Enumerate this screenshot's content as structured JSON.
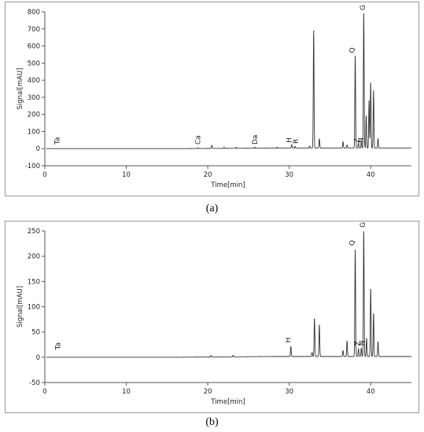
{
  "chart_data": [
    {
      "type": "line",
      "caption": "(a)",
      "xlabel": "Time[min]",
      "ylabel": "Signal[mAU]",
      "xlim": [
        0,
        45
      ],
      "ylim": [
        -100,
        800
      ],
      "xticks": [
        0,
        10,
        20,
        30,
        40
      ],
      "yticks": [
        -100,
        0,
        100,
        200,
        300,
        400,
        500,
        600,
        700,
        800
      ],
      "grid": false,
      "series_color": "#333333",
      "peaks": [
        {
          "t": 18.8,
          "h": 4
        },
        {
          "t": 20.5,
          "h": 18
        },
        {
          "t": 22.0,
          "h": 6
        },
        {
          "t": 23.5,
          "h": 6
        },
        {
          "t": 25.8,
          "h": 5
        },
        {
          "t": 28.5,
          "h": 5
        },
        {
          "t": 30.3,
          "h": 20
        },
        {
          "t": 30.7,
          "h": 10
        },
        {
          "t": 32.5,
          "h": 12
        },
        {
          "t": 33.0,
          "h": 690
        },
        {
          "t": 33.7,
          "h": 55
        },
        {
          "t": 36.6,
          "h": 38
        },
        {
          "t": 37.1,
          "h": 18
        },
        {
          "t": 38.1,
          "h": 540
        },
        {
          "t": 38.5,
          "h": 30
        },
        {
          "t": 38.85,
          "h": 35
        },
        {
          "t": 39.15,
          "h": 790
        },
        {
          "t": 39.45,
          "h": 190
        },
        {
          "t": 39.8,
          "h": 280
        },
        {
          "t": 40.0,
          "h": 385
        },
        {
          "t": 40.35,
          "h": 340
        },
        {
          "t": 40.9,
          "h": 55
        }
      ],
      "labels": [
        {
          "text": "Ta",
          "t": 1.5,
          "y": 10
        },
        {
          "text": "Ca",
          "t": 18.8,
          "y": 10
        },
        {
          "text": "Da",
          "t": 25.8,
          "y": 10
        },
        {
          "text": "H",
          "t": 30.0,
          "y": 20
        },
        {
          "text": "R",
          "t": 30.8,
          "y": 15
        },
        {
          "text": "Q",
          "t": 37.7,
          "y": 545
        },
        {
          "text": "G",
          "t": 39.0,
          "y": 795
        },
        {
          "text": "Z",
          "t": 38.3,
          "y": 20
        },
        {
          "text": "N",
          "t": 38.8,
          "y": 20
        }
      ]
    },
    {
      "type": "line",
      "caption": "(b)",
      "xlabel": "Time[min]",
      "ylabel": "Signal[mAU]",
      "xlim": [
        0,
        45
      ],
      "ylim": [
        -50,
        250
      ],
      "xticks": [
        0,
        10,
        20,
        30,
        40
      ],
      "yticks": [
        -50,
        0,
        50,
        100,
        150,
        200,
        250
      ],
      "grid": false,
      "series_color": "#333333",
      "peaks": [
        {
          "t": 20.4,
          "h": 3
        },
        {
          "t": 23.1,
          "h": 3
        },
        {
          "t": 30.2,
          "h": 20
        },
        {
          "t": 32.8,
          "h": 8
        },
        {
          "t": 33.1,
          "h": 76
        },
        {
          "t": 33.7,
          "h": 63
        },
        {
          "t": 36.6,
          "h": 12
        },
        {
          "t": 37.1,
          "h": 31
        },
        {
          "t": 38.1,
          "h": 212
        },
        {
          "t": 38.5,
          "h": 15
        },
        {
          "t": 38.85,
          "h": 17
        },
        {
          "t": 39.15,
          "h": 249
        },
        {
          "t": 39.5,
          "h": 36
        },
        {
          "t": 40.0,
          "h": 135
        },
        {
          "t": 40.35,
          "h": 86
        },
        {
          "t": 40.9,
          "h": 30
        }
      ],
      "labels": [
        {
          "text": "Ta",
          "t": 1.6,
          "y": 10
        },
        {
          "text": "H",
          "t": 29.9,
          "y": 24
        },
        {
          "text": "Q",
          "t": 37.7,
          "y": 216
        },
        {
          "text": "G",
          "t": 39.0,
          "y": 252
        },
        {
          "text": "Z",
          "t": 38.4,
          "y": 18
        },
        {
          "text": "N",
          "t": 38.9,
          "y": 18
        }
      ]
    }
  ]
}
